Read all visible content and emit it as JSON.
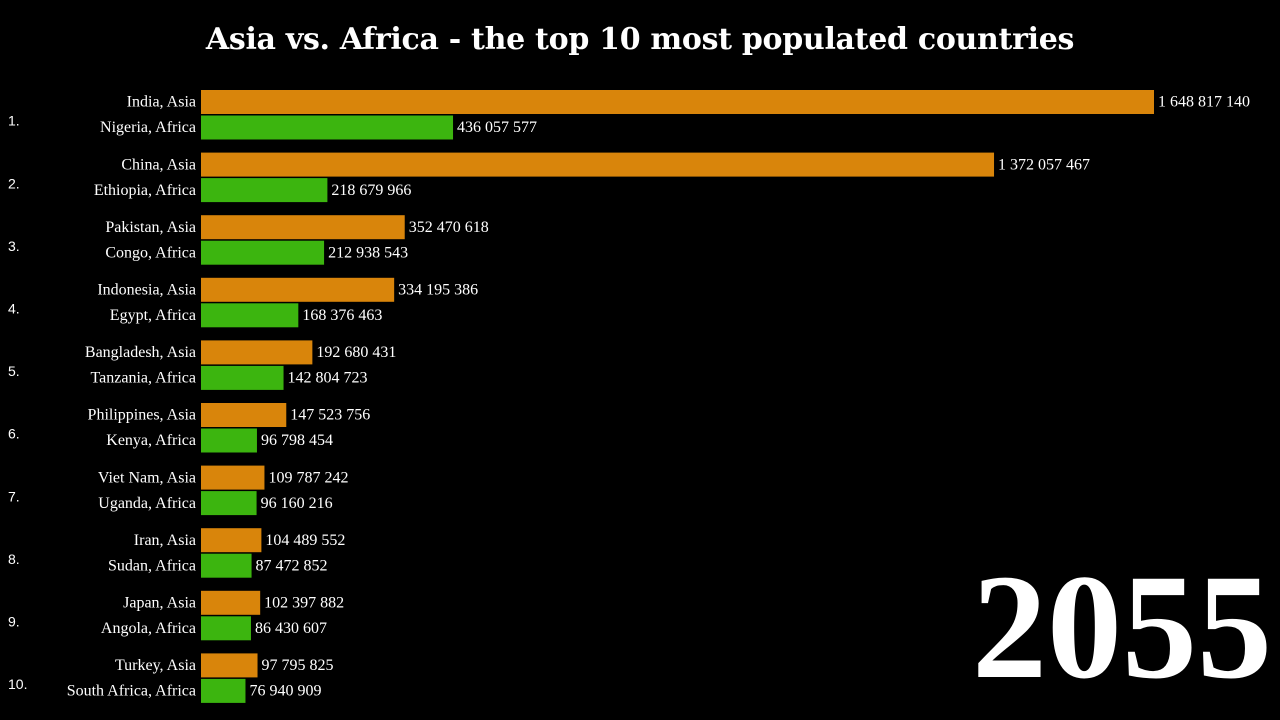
{
  "chart_data": {
    "type": "bar",
    "orientation": "horizontal",
    "title": "Asia vs. Africa - the top 10 most populated countries",
    "year": "2055",
    "colors": {
      "asia": "#d9850b",
      "africa": "#3cb50f",
      "background": "#000000",
      "text": "#ffffff"
    },
    "ranks": [
      {
        "rank": "1.",
        "asia": {
          "label": "India, Asia",
          "value": 1648817140,
          "value_text": "1 648 817 140"
        },
        "africa": {
          "label": "Nigeria, Africa",
          "value": 436057577,
          "value_text": "436 057 577"
        }
      },
      {
        "rank": "2.",
        "asia": {
          "label": "China, Asia",
          "value": 1372057467,
          "value_text": "1 372 057 467"
        },
        "africa": {
          "label": "Ethiopia, Africa",
          "value": 218679966,
          "value_text": "218 679 966"
        }
      },
      {
        "rank": "3.",
        "asia": {
          "label": "Pakistan, Asia",
          "value": 352470618,
          "value_text": "352 470 618"
        },
        "africa": {
          "label": "Congo, Africa",
          "value": 212938543,
          "value_text": "212 938 543"
        }
      },
      {
        "rank": "4.",
        "asia": {
          "label": "Indonesia, Asia",
          "value": 334195386,
          "value_text": "334 195 386"
        },
        "africa": {
          "label": "Egypt, Africa",
          "value": 168376463,
          "value_text": "168 376 463"
        }
      },
      {
        "rank": "5.",
        "asia": {
          "label": "Bangladesh, Asia",
          "value": 192680431,
          "value_text": "192 680 431"
        },
        "africa": {
          "label": "Tanzania, Africa",
          "value": 142804723,
          "value_text": "142 804 723"
        }
      },
      {
        "rank": "6.",
        "asia": {
          "label": "Philippines, Asia",
          "value": 147523756,
          "value_text": "147 523 756"
        },
        "africa": {
          "label": "Kenya, Africa",
          "value": 96798454,
          "value_text": "96 798 454"
        }
      },
      {
        "rank": "7.",
        "asia": {
          "label": "Viet Nam, Asia",
          "value": 109787242,
          "value_text": "109 787 242"
        },
        "africa": {
          "label": "Uganda, Africa",
          "value": 96160216,
          "value_text": "96 160 216"
        }
      },
      {
        "rank": "8.",
        "asia": {
          "label": "Iran, Asia",
          "value": 104489552,
          "value_text": "104 489 552"
        },
        "africa": {
          "label": "Sudan, Africa",
          "value": 87472852,
          "value_text": "87 472 852"
        }
      },
      {
        "rank": "9.",
        "asia": {
          "label": "Japan, Asia",
          "value": 102397882,
          "value_text": "102 397 882"
        },
        "africa": {
          "label": "Angola, Africa",
          "value": 86430607,
          "value_text": "86 430 607"
        }
      },
      {
        "rank": "10.",
        "asia": {
          "label": "Turkey, Asia",
          "value": 97795825,
          "value_text": "97 795 825"
        },
        "africa": {
          "label": "South Africa, Africa",
          "value": 76940909,
          "value_text": "76 940 909"
        }
      }
    ]
  }
}
